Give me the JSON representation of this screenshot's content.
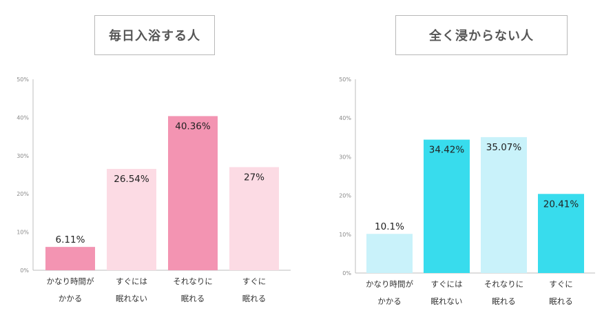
{
  "chart_data": [
    {
      "type": "bar",
      "title": "毎日入浴する人",
      "categories": [
        [
          "かなり時間が",
          "かかる"
        ],
        [
          "すぐには",
          "眠れない"
        ],
        [
          "それなりに",
          "眠れる"
        ],
        [
          "すぐに",
          "眠れる"
        ]
      ],
      "values": [
        6.11,
        26.54,
        40.36,
        27
      ],
      "value_labels": [
        "6.11%",
        "26.54%",
        "40.36%",
        "27%"
      ],
      "colors": [
        "#f394b2",
        "#fcdbe4",
        "#f394b2",
        "#fcdbe4"
      ],
      "yticks": [
        "0%",
        "10%",
        "20%",
        "30%",
        "40%",
        "50%"
      ],
      "ylim": [
        0,
        50
      ],
      "grid": false
    },
    {
      "type": "bar",
      "title": "全く浸からない人",
      "categories": [
        [
          "かなり時間が",
          "かかる"
        ],
        [
          "すぐには",
          "眠れない"
        ],
        [
          "それなりに",
          "眠れる"
        ],
        [
          "すぐに",
          "眠れる"
        ]
      ],
      "values": [
        10.1,
        34.42,
        35.07,
        20.41
      ],
      "value_labels": [
        "10.1%",
        "34.42%",
        "35.07%",
        "20.41%"
      ],
      "colors": [
        "#c9f2fa",
        "#38dced",
        "#c9f2fa",
        "#38dced"
      ],
      "yticks": [
        "0%",
        "10%",
        "20%",
        "30%",
        "40%",
        "50%"
      ],
      "ylim": [
        0,
        50
      ],
      "grid": false
    }
  ]
}
